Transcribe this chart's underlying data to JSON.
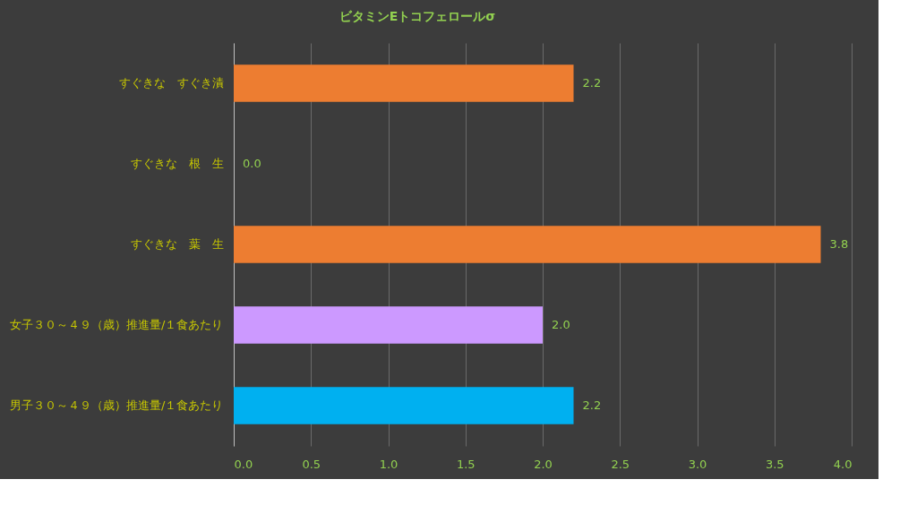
{
  "chart_data": {
    "type": "bar",
    "orientation": "horizontal",
    "title": "ビタミンEトコフェロールσ",
    "categories": [
      "すぐきな　すぐき漬",
      "すぐきな　根　生",
      "すぐきな　葉　生",
      "女子３０～４９（歳）推進量/１食あたり",
      "男子３０～４９（歳）推進量/１食あたり"
    ],
    "values": [
      2.2,
      0.0,
      3.8,
      2.0,
      2.2
    ],
    "colors": [
      "#ed7d31",
      "#ed7d31",
      "#ed7d31",
      "#cc99ff",
      "#00b0f0"
    ],
    "value_labels": [
      "2.2",
      "0.0",
      "3.8",
      "2.0",
      "2.2"
    ],
    "xlim": [
      0,
      4
    ],
    "xticks": [
      {
        "value": 0,
        "label": "0.0"
      },
      {
        "value": 0.5,
        "label": "0.5"
      },
      {
        "value": 1,
        "label": "1.0"
      },
      {
        "value": 1.5,
        "label": "1.5"
      },
      {
        "value": 2,
        "label": "2.0"
      },
      {
        "value": 2.5,
        "label": "2.5"
      },
      {
        "value": 3,
        "label": "3.0"
      },
      {
        "value": 3.5,
        "label": "3.5"
      },
      {
        "value": 4,
        "label": "4.0"
      }
    ],
    "grid": "x"
  }
}
